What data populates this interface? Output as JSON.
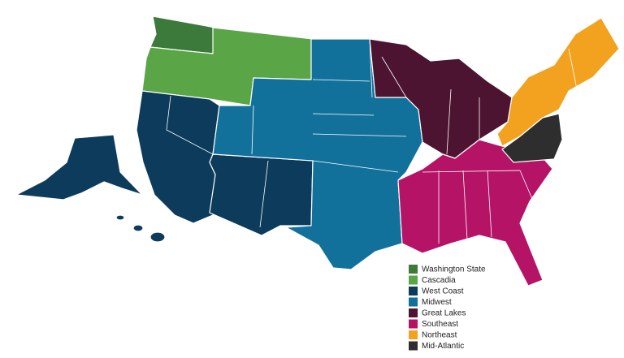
{
  "legend": {
    "items": [
      {
        "label": "Washington State",
        "color": "#3b7a3a"
      },
      {
        "label": "Cascadia",
        "color": "#5aa647"
      },
      {
        "label": "West Coast",
        "color": "#0d3b5c"
      },
      {
        "label": "Midwest",
        "color": "#12719b"
      },
      {
        "label": "Great Lakes",
        "color": "#4c1430"
      },
      {
        "label": "Southeast",
        "color": "#b51366"
      },
      {
        "label": "Northeast",
        "color": "#f2a21f"
      },
      {
        "label": "Mid-Atlantic",
        "color": "#2e2e2e"
      }
    ]
  }
}
